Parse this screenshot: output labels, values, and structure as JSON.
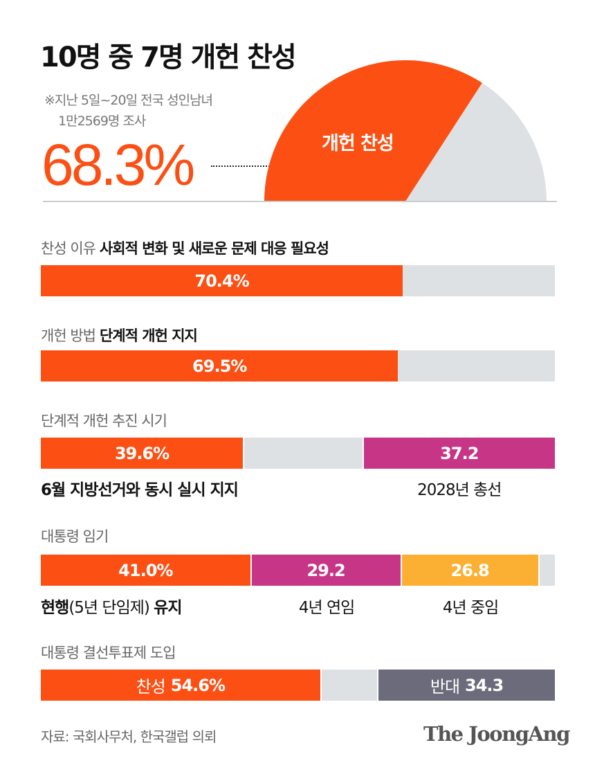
{
  "title": "10명 중 7명 개헌 찬성",
  "note": [
    "※지난 5일~20일 전국 성인남녀",
    "1만2569명 조사"
  ],
  "colors": {
    "orange": "#fb4f14",
    "magenta": "#c73586",
    "yellow": "#fbb034",
    "rest": "#dde1e3",
    "darkgray": "#6b6b7b"
  },
  "chart_data": [
    {
      "type": "pie",
      "subtype": "half-donut",
      "big_value_label": "68.3%",
      "slices": [
        {
          "name": "개헌 찬성",
          "value": 68.3,
          "color": "#fb4f14"
        },
        {
          "value": 31.7,
          "color": "#dde1e3"
        }
      ]
    },
    {
      "type": "bar",
      "stacked": true,
      "label": "찬성 이유",
      "headline": "사회적 변화 및 새로운 문제 대응 필요성",
      "segments": [
        {
          "value": 70.4,
          "text": "70.4%",
          "color": "#fb4f14"
        }
      ],
      "below": []
    },
    {
      "type": "bar",
      "stacked": true,
      "label": "개헌 방법",
      "headline": "단계적 개헌 지지",
      "segments": [
        {
          "value": 69.5,
          "text": "69.5%",
          "color": "#fb4f14"
        }
      ],
      "below": []
    },
    {
      "type": "bar",
      "stacked": true,
      "label": "단계적 개헌 추진 시기",
      "headline": "",
      "segments": [
        {
          "value": 39.6,
          "text": "39.6%",
          "color": "#fb4f14"
        },
        {
          "value": 23.2,
          "text": "",
          "color": "#dde1e3"
        },
        {
          "value": 37.2,
          "text": "37.2",
          "color": "#c73586"
        }
      ],
      "below": [
        {
          "seg": 0,
          "align": "left",
          "bold": "6월 지방선거와 동시 실시 지지",
          "regular": "",
          "bold2": ""
        },
        {
          "seg": 2,
          "align": "center",
          "bold": "",
          "regular": "2028년 총선",
          "bold2": ""
        }
      ]
    },
    {
      "type": "bar",
      "stacked": true,
      "label": "대통령 임기",
      "headline": "",
      "segments": [
        {
          "value": 41.0,
          "text": "41.0%",
          "color": "#fb4f14"
        },
        {
          "value": 29.2,
          "text": "29.2",
          "color": "#c73586"
        },
        {
          "value": 26.8,
          "text": "26.8",
          "color": "#fbb034"
        },
        {
          "value": 3.0,
          "text": "",
          "color": "#dde1e3"
        }
      ],
      "below": [
        {
          "seg": 0,
          "align": "left",
          "bold": "현행",
          "regular": "(5년 단임제) ",
          "bold2": "유지"
        },
        {
          "seg": 1,
          "align": "center",
          "bold": "",
          "regular": "4년 연임",
          "bold2": ""
        },
        {
          "seg": 2,
          "align": "center",
          "bold": "",
          "regular": "4년 중임",
          "bold2": ""
        }
      ]
    },
    {
      "type": "bar",
      "stacked": true,
      "label": "대통령 결선투표제 도입",
      "headline": "",
      "segments": [
        {
          "value": 54.6,
          "prefix": "찬성",
          "text": "54.6%",
          "color": "#fb4f14"
        },
        {
          "value": 11.1,
          "text": "",
          "color": "#dde1e3"
        },
        {
          "value": 34.3,
          "prefix": "반대",
          "text": "34.3",
          "color": "#6b6b7b"
        }
      ],
      "below": []
    }
  ],
  "footer": {
    "source": "자료: 국회사무처, 한국갤럽 의뢰",
    "logo": "The JoongAng"
  }
}
